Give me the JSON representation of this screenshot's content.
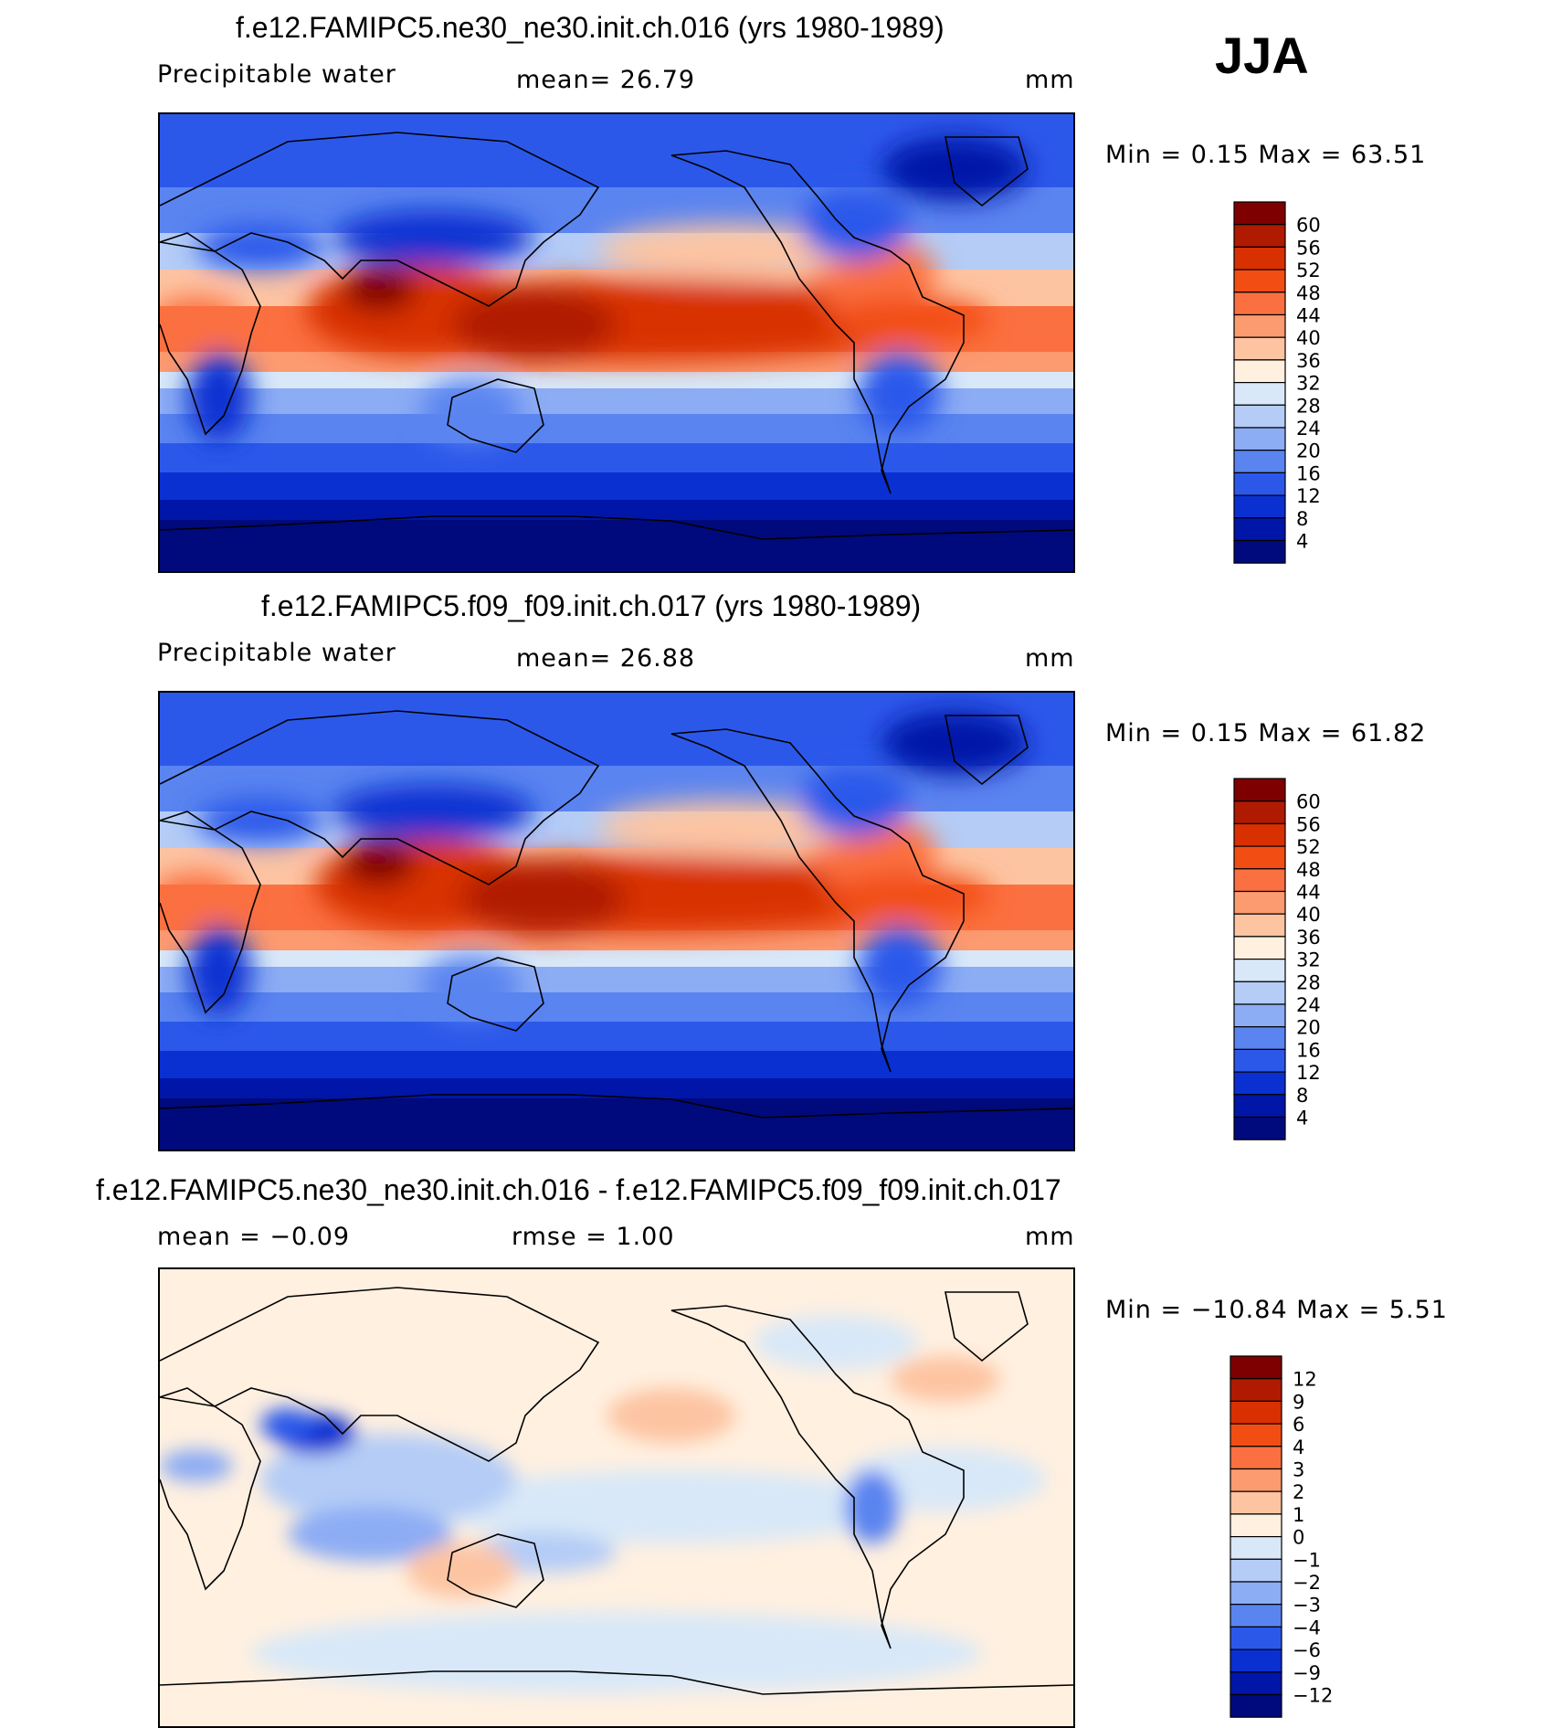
{
  "season": "JJA",
  "panels": [
    {
      "title": "f.e12.FAMIPC5.ne30_ne30.init.ch.016 (yrs 1980-1989)",
      "variable": "Precipitable water",
      "stat_text": "mean=   26.79",
      "rmse_text": "",
      "units": "mm",
      "minmax_text": "Min =    0.15  Max =   63.51",
      "min": 0.15,
      "max": 63.51,
      "levels": [
        "60",
        "56",
        "52",
        "48",
        "44",
        "40",
        "36",
        "32",
        "28",
        "24",
        "20",
        "16",
        "12",
        "8",
        "4"
      ],
      "colors": [
        "#7f0000",
        "#b01a00",
        "#d83000",
        "#f24e14",
        "#fb7040",
        "#fc9a70",
        "#fdc4a2",
        "#fff0e0",
        "#d8e8f8",
        "#b4ccf6",
        "#8cacf4",
        "#5a84f0",
        "#2c58ea",
        "#0a30d2",
        "#0016a8",
        "#000a7c"
      ]
    },
    {
      "title": "f.e12.FAMIPC5.f09_f09.init.ch.017 (yrs 1980-1989)",
      "variable": "Precipitable water",
      "stat_text": "mean=   26.88",
      "rmse_text": "",
      "units": "mm",
      "minmax_text": "Min =    0.15  Max =   61.82",
      "min": 0.15,
      "max": 61.82,
      "levels": [
        "60",
        "56",
        "52",
        "48",
        "44",
        "40",
        "36",
        "32",
        "28",
        "24",
        "20",
        "16",
        "12",
        "8",
        "4"
      ],
      "colors": [
        "#7f0000",
        "#b01a00",
        "#d83000",
        "#f24e14",
        "#fb7040",
        "#fc9a70",
        "#fdc4a2",
        "#fff0e0",
        "#d8e8f8",
        "#b4ccf6",
        "#8cacf4",
        "#5a84f0",
        "#2c58ea",
        "#0a30d2",
        "#0016a8",
        "#000a7c"
      ]
    },
    {
      "title": "f.e12.FAMIPC5.ne30_ne30.init.ch.016 - f.e12.FAMIPC5.f09_f09.init.ch.017",
      "variable": "",
      "stat_text": "mean =   −0.09",
      "rmse_text": "rmse =     1.00",
      "units": "mm",
      "minmax_text": "Min = −10.84  Max =     5.51",
      "min": -10.84,
      "max": 5.51,
      "levels": [
        "12",
        "9",
        "6",
        "4",
        "3",
        "2",
        "1",
        "0",
        "−1",
        "−2",
        "−3",
        "−4",
        "−6",
        "−9",
        "−12"
      ],
      "colors": [
        "#7f0000",
        "#b01a00",
        "#d83000",
        "#f24e14",
        "#fb7040",
        "#fc9a70",
        "#fdc4a2",
        "#fff0e0",
        "#d8e8f8",
        "#b4ccf6",
        "#8cacf4",
        "#5a84f0",
        "#2c58ea",
        "#0a30d2",
        "#0016a8",
        "#000a7c"
      ]
    }
  ]
}
